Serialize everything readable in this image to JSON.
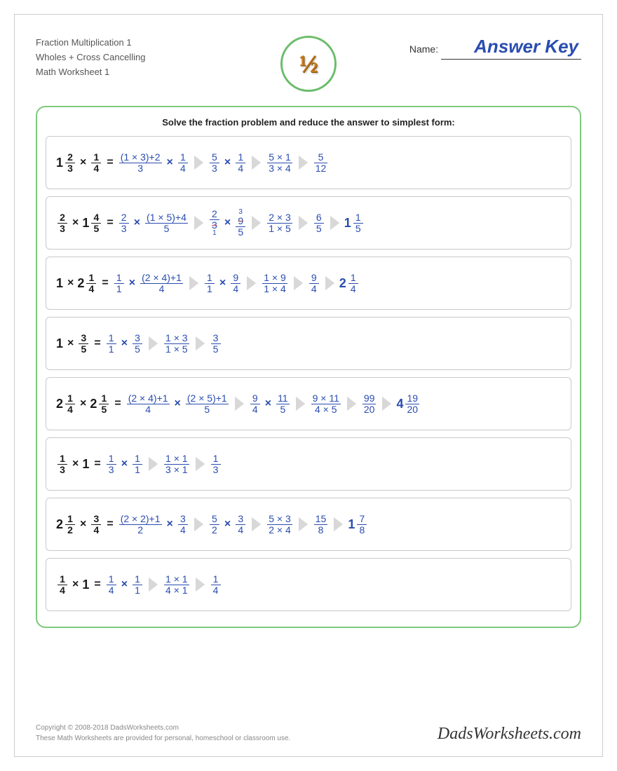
{
  "header": {
    "line1": "Fraction Multiplication 1",
    "line2": "Wholes + Cross Cancelling",
    "line3": "Math Worksheet 1",
    "badge": "½",
    "name_label": "Name:",
    "answer_key": "Answer Key"
  },
  "instructions": "Solve the fraction problem and reduce the answer to simplest form:",
  "colors": {
    "accent_green": "#7ec97e",
    "answer_blue": "#2a4db0",
    "arrow_gray": "#d8d8d8",
    "text_dark": "#1a1a1a",
    "badge_brown": "#c87a1e"
  },
  "problems": [
    {
      "lhs": [
        {
          "w": "1",
          "n": "2",
          "d": "3"
        },
        {
          "op": "×"
        },
        {
          "n": "1",
          "d": "4"
        }
      ],
      "steps": [
        [
          {
            "n": "(1 × 3)+2",
            "d": "3"
          },
          {
            "op": "×"
          },
          {
            "n": "1",
            "d": "4"
          }
        ],
        [
          {
            "n": "5",
            "d": "3"
          },
          {
            "op": "×"
          },
          {
            "n": "1",
            "d": "4"
          }
        ],
        [
          {
            "n": "5 × 1",
            "d": "3 × 4"
          }
        ],
        [
          {
            "n": "5",
            "d": "12"
          }
        ]
      ]
    },
    {
      "lhs": [
        {
          "n": "2",
          "d": "3"
        },
        {
          "op": "×"
        },
        {
          "w": "1",
          "n": "4",
          "d": "5"
        }
      ],
      "steps": [
        [
          {
            "n": "2",
            "d": "3"
          },
          {
            "op": "×"
          },
          {
            "n": "(1 × 5)+4",
            "d": "5"
          }
        ],
        [
          {
            "cancel": true,
            "n": "2",
            "d": "3",
            "nt": "",
            "dt": "1"
          },
          {
            "op": "×"
          },
          {
            "cancel": true,
            "n": "9",
            "d": "5",
            "nt": "3",
            "dt": ""
          }
        ],
        [
          {
            "n": "2 × 3",
            "d": "1 × 5"
          }
        ],
        [
          {
            "n": "6",
            "d": "5"
          }
        ],
        [
          {
            "w": "1",
            "n": "1",
            "d": "5"
          }
        ]
      ]
    },
    {
      "lhs": [
        {
          "t": "1"
        },
        {
          "op": "×"
        },
        {
          "w": "2",
          "n": "1",
          "d": "4"
        }
      ],
      "steps": [
        [
          {
            "n": "1",
            "d": "1"
          },
          {
            "op": "×"
          },
          {
            "n": "(2 × 4)+1",
            "d": "4"
          }
        ],
        [
          {
            "n": "1",
            "d": "1"
          },
          {
            "op": "×"
          },
          {
            "n": "9",
            "d": "4"
          }
        ],
        [
          {
            "n": "1 × 9",
            "d": "1 × 4"
          }
        ],
        [
          {
            "n": "9",
            "d": "4"
          }
        ],
        [
          {
            "w": "2",
            "n": "1",
            "d": "4"
          }
        ]
      ]
    },
    {
      "lhs": [
        {
          "t": "1"
        },
        {
          "op": "×"
        },
        {
          "n": "3",
          "d": "5"
        }
      ],
      "steps": [
        [
          {
            "n": "1",
            "d": "1"
          },
          {
            "op": "×"
          },
          {
            "n": "3",
            "d": "5"
          }
        ],
        [
          {
            "n": "1 × 3",
            "d": "1 × 5"
          }
        ],
        [
          {
            "n": "3",
            "d": "5"
          }
        ]
      ]
    },
    {
      "lhs": [
        {
          "w": "2",
          "n": "1",
          "d": "4"
        },
        {
          "op": "×"
        },
        {
          "w": "2",
          "n": "1",
          "d": "5"
        }
      ],
      "steps": [
        [
          {
            "n": "(2 × 4)+1",
            "d": "4"
          },
          {
            "op": "×"
          },
          {
            "n": "(2 × 5)+1",
            "d": "5"
          }
        ],
        [
          {
            "n": "9",
            "d": "4"
          },
          {
            "op": "×"
          },
          {
            "n": "11",
            "d": "5"
          }
        ],
        [
          {
            "n": "9 × 11",
            "d": "4 × 5"
          }
        ],
        [
          {
            "n": "99",
            "d": "20"
          }
        ],
        [
          {
            "w": "4",
            "n": "19",
            "d": "20"
          }
        ]
      ]
    },
    {
      "lhs": [
        {
          "n": "1",
          "d": "3"
        },
        {
          "op": "×"
        },
        {
          "t": "1"
        }
      ],
      "steps": [
        [
          {
            "n": "1",
            "d": "3"
          },
          {
            "op": "×"
          },
          {
            "n": "1",
            "d": "1"
          }
        ],
        [
          {
            "n": "1 × 1",
            "d": "3 × 1"
          }
        ],
        [
          {
            "n": "1",
            "d": "3"
          }
        ]
      ]
    },
    {
      "lhs": [
        {
          "w": "2",
          "n": "1",
          "d": "2"
        },
        {
          "op": "×"
        },
        {
          "n": "3",
          "d": "4"
        }
      ],
      "steps": [
        [
          {
            "n": "(2 × 2)+1",
            "d": "2"
          },
          {
            "op": "×"
          },
          {
            "n": "3",
            "d": "4"
          }
        ],
        [
          {
            "n": "5",
            "d": "2"
          },
          {
            "op": "×"
          },
          {
            "n": "3",
            "d": "4"
          }
        ],
        [
          {
            "n": "5 × 3",
            "d": "2 × 4"
          }
        ],
        [
          {
            "n": "15",
            "d": "8"
          }
        ],
        [
          {
            "w": "1",
            "n": "7",
            "d": "8"
          }
        ]
      ]
    },
    {
      "lhs": [
        {
          "n": "1",
          "d": "4"
        },
        {
          "op": "×"
        },
        {
          "t": "1"
        }
      ],
      "steps": [
        [
          {
            "n": "1",
            "d": "4"
          },
          {
            "op": "×"
          },
          {
            "n": "1",
            "d": "1"
          }
        ],
        [
          {
            "n": "1 × 1",
            "d": "4 × 1"
          }
        ],
        [
          {
            "n": "1",
            "d": "4"
          }
        ]
      ]
    }
  ],
  "footer": {
    "copyright": "Copyright © 2008-2018 DadsWorksheets.com",
    "disclaimer": "These Math Worksheets are provided for personal, homeschool or classroom use.",
    "site": "DadsWorksheets.com"
  }
}
